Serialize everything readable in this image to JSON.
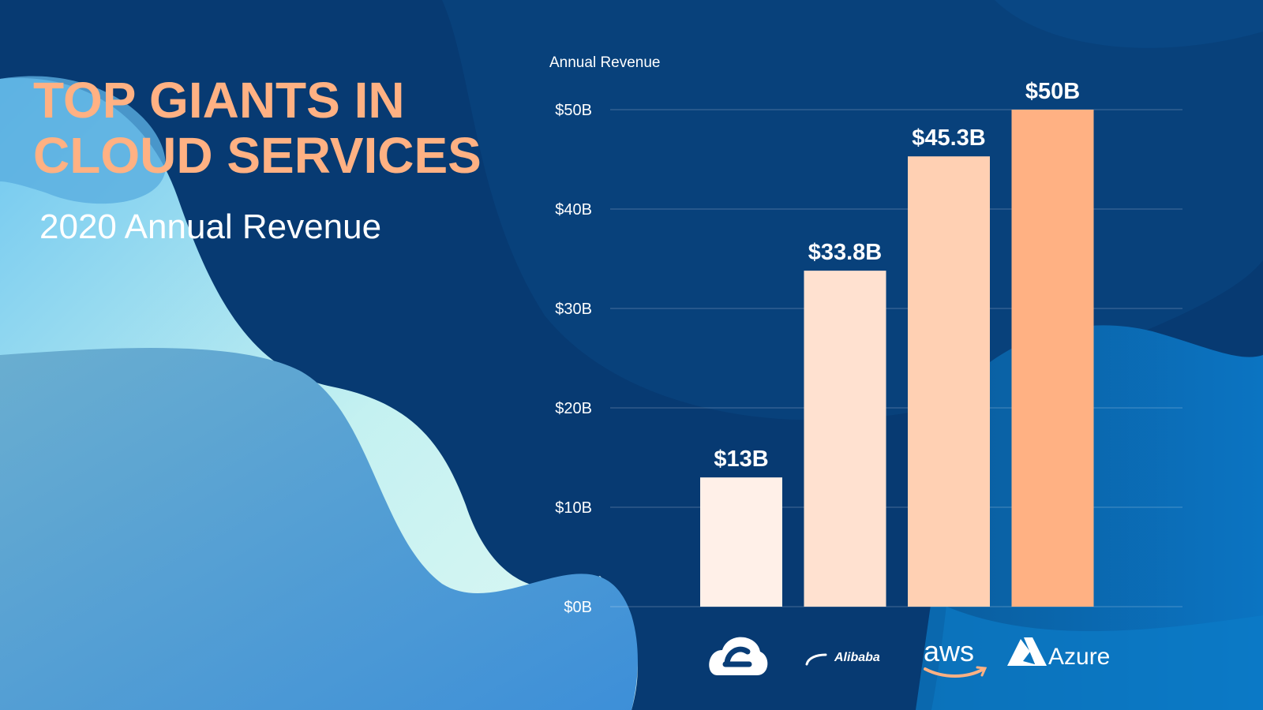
{
  "slide": {
    "title": "TOP GIANTS IN CLOUD SERVICES",
    "subtitle": "2020 Annual Revenue"
  },
  "colors": {
    "background": "#083d77",
    "title": "#ffb183",
    "bars": [
      "#fff0e8",
      "#ffe1d0",
      "#ffd0b3",
      "#ffb183"
    ]
  },
  "chart_data": {
    "type": "bar",
    "title": "",
    "ylabel": "Annual Revenue",
    "xlabel": "",
    "categories": [
      "Google Cloud",
      "Alibaba",
      "aws",
      "Azure"
    ],
    "values": [
      13,
      33.8,
      45.3,
      50
    ],
    "value_labels": [
      "$13B",
      "$33.8B",
      "$45.3B",
      "$50B"
    ],
    "ylim": [
      0,
      50
    ],
    "yticks": [
      0,
      10,
      20,
      30,
      40,
      50
    ],
    "ytick_labels": [
      "$0B",
      "$10B",
      "$20B",
      "$30B",
      "$40B",
      "$50B"
    ],
    "grid": true,
    "legend": "none",
    "category_logos": [
      "google-cloud-icon",
      "alibaba-logo",
      "aws-logo",
      "azure-logo"
    ]
  }
}
